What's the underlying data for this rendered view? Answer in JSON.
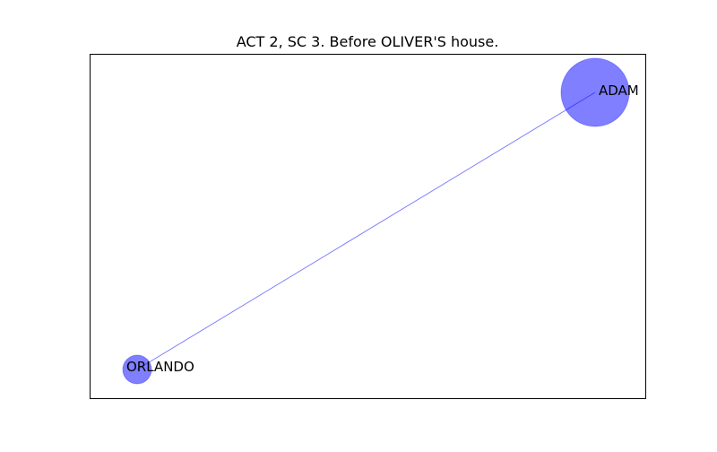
{
  "title": "ACT 2, SC 3. Before OLIVER'S house.",
  "nodes": [
    {
      "label": "ADAM"
    },
    {
      "label": "ORLANDO"
    }
  ]
}
